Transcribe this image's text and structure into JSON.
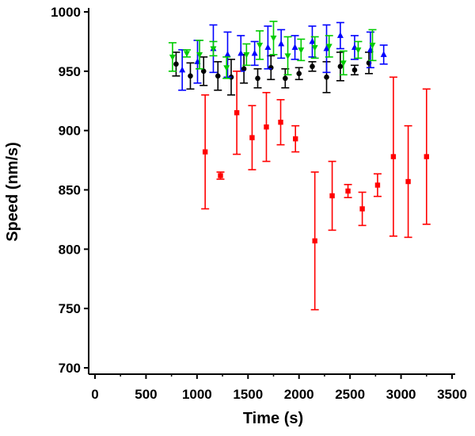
{
  "chart_data": {
    "type": "scatter",
    "title": "",
    "xlabel": "Time (s)",
    "ylabel": "Speed (nm/s)",
    "xlim": [
      0,
      3500
    ],
    "ylim": [
      700,
      1000
    ],
    "xticks": [
      "0",
      "500",
      "1000",
      "1500",
      "2000",
      "2500",
      "3000",
      "3500"
    ],
    "yticks": [
      "700",
      "750",
      "800",
      "850",
      "900",
      "950",
      "1000"
    ],
    "grid": false,
    "series": [
      {
        "color": "#000000",
        "marker": "circle",
        "x": [
          795,
          935,
          1065,
          1205,
          1335,
          1460,
          1595,
          1725,
          1865,
          2000,
          2130,
          2270,
          2405,
          2545,
          2685
        ],
        "y": [
          956,
          946,
          950,
          946,
          945,
          952,
          944,
          953,
          944,
          948,
          954,
          945,
          954,
          951,
          957
        ],
        "err": [
          10,
          11,
          12,
          12,
          15,
          12,
          8,
          10,
          8,
          5,
          4,
          13,
          12,
          4,
          9
        ]
      },
      {
        "color": "#0000ff",
        "marker": "triangle-up",
        "x": [
          855,
          1005,
          1160,
          1300,
          1430,
          1565,
          1695,
          1825,
          1960,
          2130,
          2270,
          2405,
          2545,
          2700,
          2830
        ],
        "y": [
          951,
          958,
          969,
          964,
          965,
          965,
          970,
          973,
          970,
          975,
          969,
          980,
          970,
          968,
          964
        ],
        "err": [
          17,
          18,
          20,
          19,
          15,
          10,
          18,
          12,
          10,
          13,
          20,
          11,
          10,
          15,
          8
        ]
      },
      {
        "color": "#00cc00",
        "marker": "triangle-down",
        "x": [
          760,
          900,
          1025,
          1160,
          1290,
          1485,
          1615,
          1750,
          1890,
          2020,
          2155,
          2295,
          2435,
          2580,
          2720
        ],
        "y": [
          962,
          965,
          964,
          969,
          953,
          964,
          972,
          978,
          963,
          968,
          970,
          971,
          957,
          968,
          972
        ],
        "err": [
          12,
          3,
          12,
          6,
          9,
          9,
          12,
          14,
          16,
          9,
          9,
          9,
          10,
          7,
          13
        ]
      },
      {
        "color": "#ff0000",
        "marker": "square",
        "x": [
          1080,
          1230,
          1390,
          1540,
          1680,
          1820,
          1965,
          2155,
          2325,
          2480,
          2620,
          2770,
          2925,
          3070,
          3250
        ],
        "y": [
          882,
          862,
          915,
          894,
          903,
          907,
          893,
          807,
          845,
          849,
          834,
          854,
          878,
          857,
          878
        ],
        "err": [
          48,
          3,
          35,
          27,
          29,
          19,
          11,
          58,
          29,
          5.5,
          14,
          9.5,
          67,
          47,
          57
        ]
      }
    ]
  }
}
